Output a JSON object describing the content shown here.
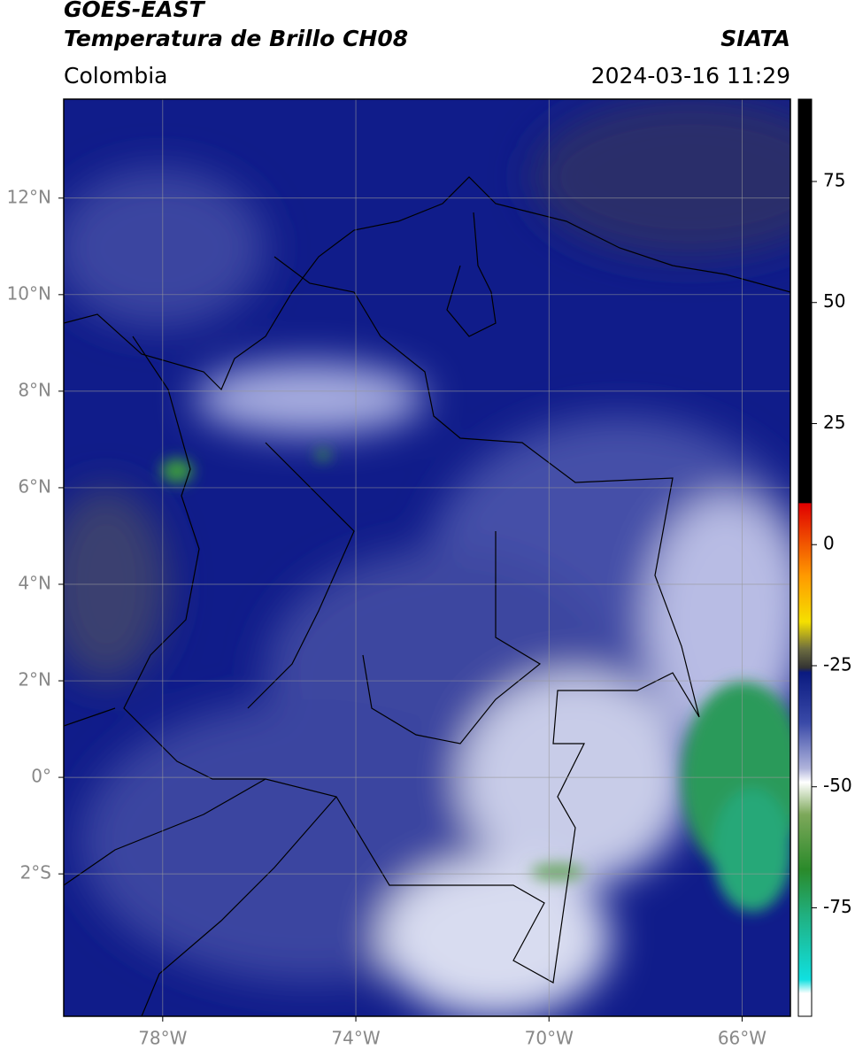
{
  "chart_data": {
    "type": "map",
    "title": "GOES-EAST",
    "subtitle": "Temperatura de Brillo CH08",
    "source": "SIATA",
    "region": "Colombia",
    "datetime": "2024-03-16 11:29",
    "xlim": [
      -80.05,
      -65
    ],
    "ylim": [
      -4.95,
      14.05
    ],
    "xticks": [
      {
        "value": -78,
        "label": "78°W"
      },
      {
        "value": -74,
        "label": "74°W"
      },
      {
        "value": -70,
        "label": "70°W"
      },
      {
        "value": -66,
        "label": "66°W"
      }
    ],
    "yticks": [
      {
        "value": 12,
        "label": "12°N"
      },
      {
        "value": 10,
        "label": "10°N"
      },
      {
        "value": 8,
        "label": "8°N"
      },
      {
        "value": 6,
        "label": "6°N"
      },
      {
        "value": 4,
        "label": "4°N"
      },
      {
        "value": 2,
        "label": "2°N"
      },
      {
        "value": 0,
        "label": "0°"
      },
      {
        "value": -2,
        "label": "2°S"
      }
    ],
    "grid": true,
    "colorbar": {
      "lim": [
        -97.4,
        92
      ],
      "ticks": [
        75,
        50,
        25,
        0,
        -25,
        -50,
        -75
      ]
    }
  }
}
